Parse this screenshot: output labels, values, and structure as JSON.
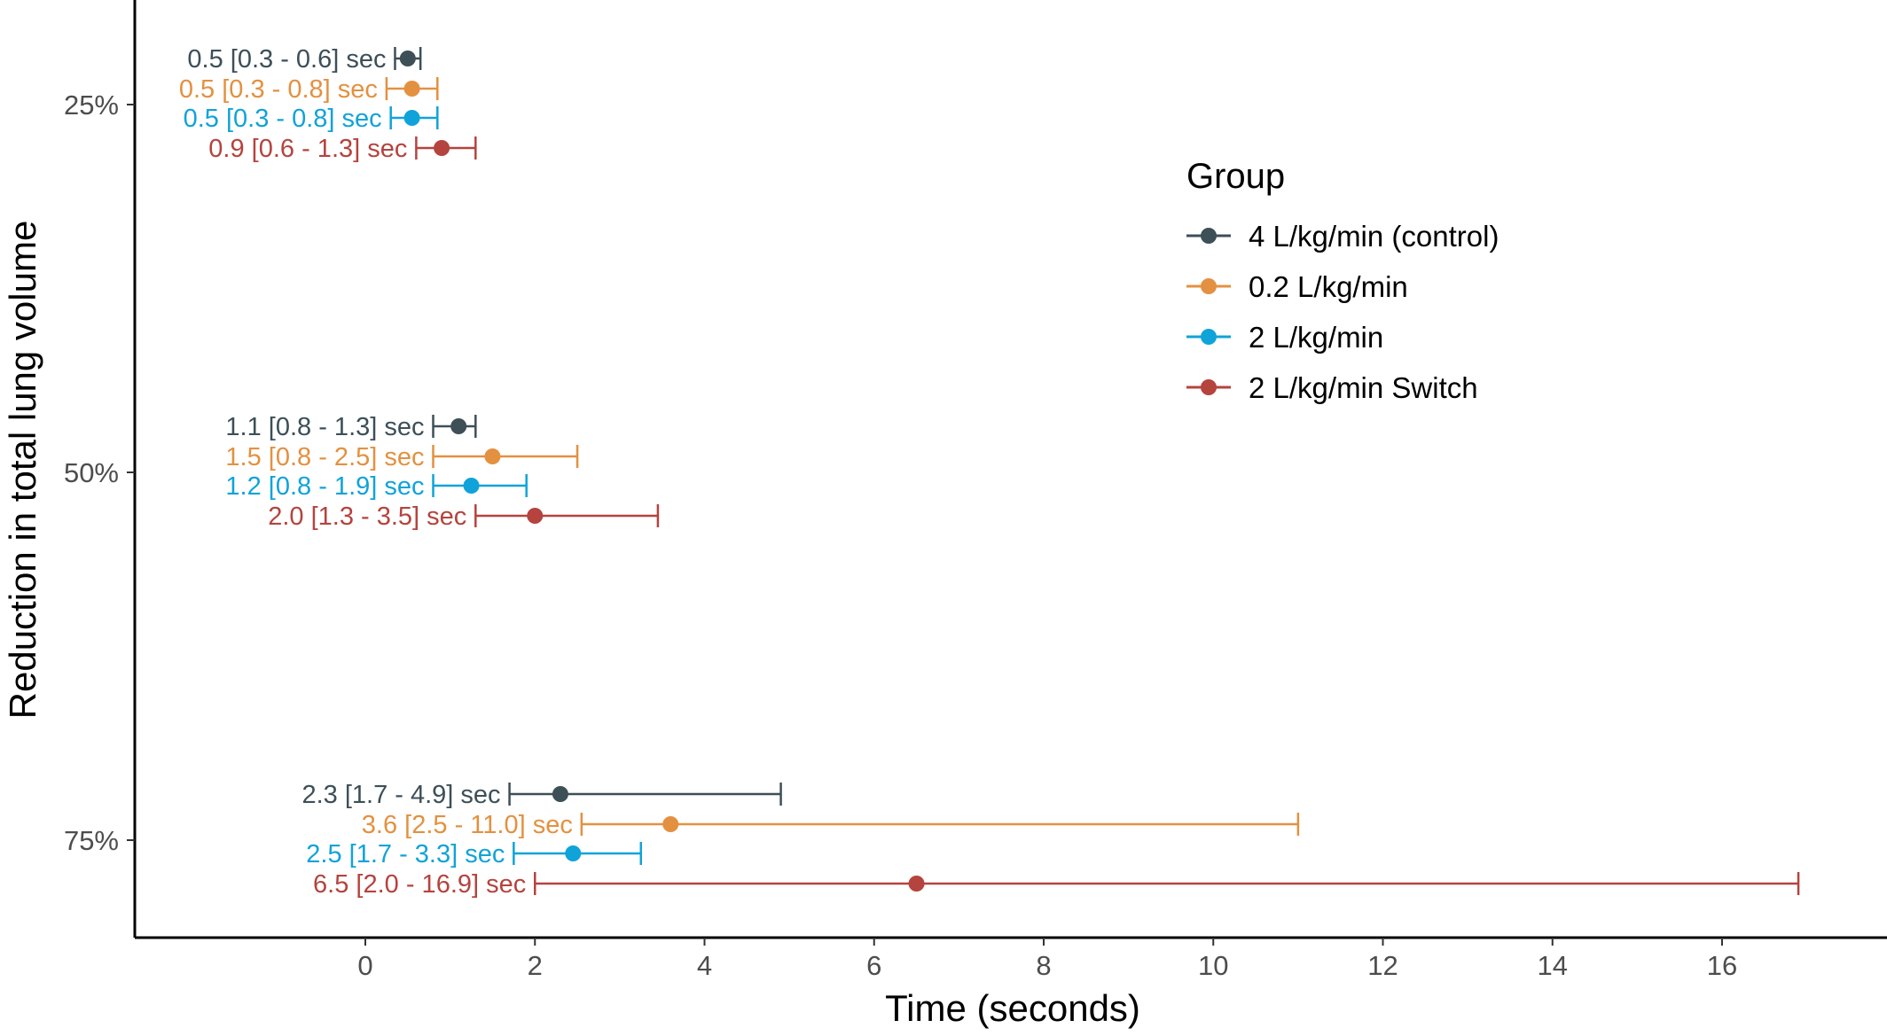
{
  "chart_data": {
    "type": "errorbar",
    "xlabel": "Time (seconds)",
    "ylabel": "Reduction in total lung volume",
    "xlim": [
      -2.8,
      17.6
    ],
    "x_ticks": [
      "0",
      "2",
      "4",
      "6",
      "8",
      "10",
      "12",
      "14",
      "16"
    ],
    "y_categories": [
      "25%",
      "50%",
      "75%"
    ],
    "grid": false,
    "legend": {
      "title": "Group",
      "position": "right"
    },
    "series": [
      {
        "name": "4 L/kg/min (control)",
        "color": "#3d4f57",
        "points": [
          {
            "category": "25%",
            "value": 0.5,
            "low": 0.35,
            "high": 0.65,
            "label": "0.5 [0.3 - 0.6] sec"
          },
          {
            "category": "50%",
            "value": 1.1,
            "low": 0.8,
            "high": 1.3,
            "label": "1.1 [0.8 - 1.3] sec"
          },
          {
            "category": "75%",
            "value": 2.3,
            "low": 1.7,
            "high": 4.9,
            "label": "2.3 [1.7 - 4.9] sec"
          }
        ]
      },
      {
        "name": "0.2 L/kg/min",
        "color": "#e39140",
        "points": [
          {
            "category": "25%",
            "value": 0.55,
            "low": 0.25,
            "high": 0.85,
            "label": "0.5 [0.3 -  0.8] sec"
          },
          {
            "category": "50%",
            "value": 1.5,
            "low": 0.8,
            "high": 2.5,
            "label": "1.5 [0.8 -  2.5] sec"
          },
          {
            "category": "75%",
            "value": 3.6,
            "low": 2.55,
            "high": 11.0,
            "label": "3.6 [2.5 - 11.0] sec"
          }
        ]
      },
      {
        "name": "2 L/kg/min",
        "color": "#10a3d9",
        "points": [
          {
            "category": "25%",
            "value": 0.55,
            "low": 0.3,
            "high": 0.85,
            "label": "0.5 [0.3 - 0.8] sec"
          },
          {
            "category": "50%",
            "value": 1.25,
            "low": 0.8,
            "high": 1.9,
            "label": "1.2 [0.8 - 1.9] sec"
          },
          {
            "category": "75%",
            "value": 2.45,
            "low": 1.75,
            "high": 3.25,
            "label": "2.5 [1.7 - 3.3] sec"
          }
        ]
      },
      {
        "name": "2 L/kg/min Switch",
        "color": "#b5433e",
        "points": [
          {
            "category": "25%",
            "value": 0.9,
            "low": 0.6,
            "high": 1.3,
            "label": "0.9 [0.6 -  1.3] sec"
          },
          {
            "category": "50%",
            "value": 2.0,
            "low": 1.3,
            "high": 3.45,
            "label": "2.0 [1.3 -  3.5] sec"
          },
          {
            "category": "75%",
            "value": 6.5,
            "low": 2.0,
            "high": 16.9,
            "label": "6.5 [2.0 - 16.9] sec"
          }
        ]
      }
    ]
  }
}
